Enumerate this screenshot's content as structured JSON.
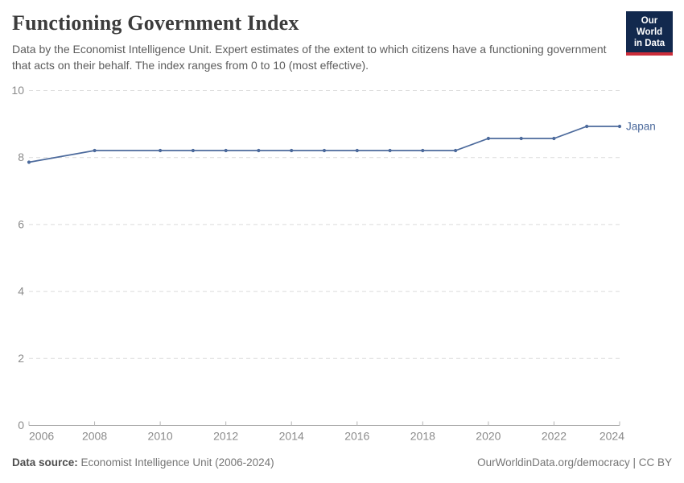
{
  "header": {
    "title": "Functioning Government Index",
    "subtitle": "Data by the Economist Intelligence Unit. Expert estimates of the extent to which citizens have a functioning government that acts on their behalf. The index ranges from 0 to 10 (most effective).",
    "logo": {
      "line1": "Our World",
      "line2": "in Data",
      "bg_color": "#12294e",
      "accent_color": "#cb2d3a"
    }
  },
  "chart_data": {
    "type": "line",
    "title": "Functioning Government Index",
    "xlabel": "",
    "ylabel": "",
    "xlim": [
      2006,
      2024
    ],
    "ylim": [
      0,
      10
    ],
    "x_ticks": [
      2006,
      2008,
      2010,
      2012,
      2014,
      2016,
      2018,
      2020,
      2022,
      2024
    ],
    "y_ticks": [
      0,
      2,
      4,
      6,
      8,
      10
    ],
    "grid": "horizontal-dashed",
    "legend_position": "end-of-line-label",
    "series": [
      {
        "name": "Japan",
        "color": "#4C6A9C",
        "x": [
          2006,
          2008,
          2010,
          2011,
          2012,
          2013,
          2014,
          2015,
          2016,
          2017,
          2018,
          2019,
          2020,
          2021,
          2022,
          2023,
          2024
        ],
        "values": [
          7.86,
          8.21,
          8.21,
          8.21,
          8.21,
          8.21,
          8.21,
          8.21,
          8.21,
          8.21,
          8.21,
          8.21,
          8.57,
          8.57,
          8.57,
          8.93,
          8.93
        ]
      }
    ]
  },
  "footer": {
    "source_label": "Data source:",
    "source_value": "Economist Intelligence Unit (2006-2024)",
    "attribution": "OurWorldinData.org/democracy | CC BY"
  }
}
